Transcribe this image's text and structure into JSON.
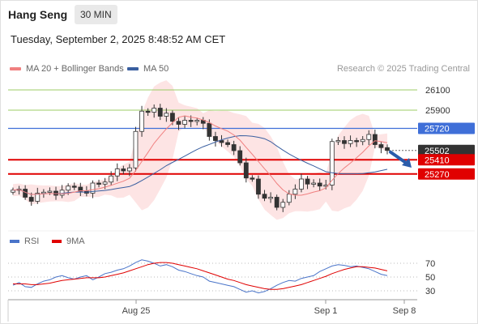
{
  "header": {
    "title": "Hang Seng",
    "timeframe": "30 MIN"
  },
  "timestamp": "Tuesday, September 2, 2025 8:48:52 AM CET",
  "legend": {
    "ma_bb": "MA 20 + Bollinger Bands",
    "ma50": "MA 50",
    "credit": "Research © 2025 Trading Central"
  },
  "colors": {
    "ma20": "#f08080",
    "ma50": "#3a5fa0",
    "band": "#fde1e1",
    "up": "#2e7d32",
    "down": "#c62828",
    "resistance_green": "#9ccc65",
    "pivot_blue": "#3f6fd8",
    "support_red": "#e00000",
    "price": "#333333"
  },
  "chart_data": [
    {
      "type": "candlestick",
      "title": "",
      "x_ticks": [
        "Aug 25",
        "Sep 1",
        "Sep 8"
      ],
      "levels": [
        {
          "value": 26100,
          "label": "26100",
          "style": "green-line"
        },
        {
          "value": 25900,
          "label": "25900",
          "style": "green-line"
        },
        {
          "value": 25720,
          "label": "25720",
          "style": "blue-pivot"
        },
        {
          "value": 25502,
          "label": "25502",
          "style": "last-price"
        },
        {
          "value": 25410,
          "label": "25410",
          "style": "red-support"
        },
        {
          "value": 25270,
          "label": "25270",
          "style": "red-support"
        }
      ],
      "close_series": [
        25110,
        25120,
        25040,
        25000,
        25080,
        25090,
        25100,
        25060,
        25110,
        25150,
        25140,
        25100,
        25080,
        25180,
        25170,
        25190,
        25250,
        25320,
        25300,
        25330,
        25690,
        25890,
        25880,
        25920,
        25840,
        25870,
        25790,
        25760,
        25800,
        25790,
        25800,
        25770,
        25640,
        25600,
        25580,
        25560,
        25500,
        25380,
        25230,
        25220,
        25070,
        25030,
        25040,
        24940,
        24990,
        25070,
        25120,
        25220,
        25170,
        25180,
        25150,
        25160,
        25590,
        25600,
        25570,
        25600,
        25590,
        25610,
        25660,
        25560,
        25530,
        25502
      ],
      "forecast": {
        "from": 25502,
        "to": 25300,
        "color": "#2a5caa"
      }
    },
    {
      "type": "line",
      "series": [
        {
          "name": "RSI"
        },
        {
          "name": "9MA"
        }
      ],
      "y_ticks": [
        70,
        50,
        30
      ],
      "ylim": [
        20,
        80
      ],
      "rsi": [
        38,
        42,
        36,
        35,
        40,
        44,
        46,
        50,
        52,
        49,
        47,
        50,
        52,
        46,
        50,
        55,
        57,
        60,
        62,
        66,
        71,
        75,
        73,
        70,
        66,
        68,
        65,
        60,
        58,
        55,
        52,
        50,
        44,
        42,
        40,
        38,
        36,
        32,
        28,
        30,
        27,
        29,
        33,
        38,
        42,
        45,
        44,
        48,
        50,
        52,
        58,
        62,
        66,
        68,
        67,
        65,
        66,
        64,
        62,
        58,
        54,
        52
      ],
      "ma9": [
        40,
        40,
        40,
        39,
        39,
        40,
        41,
        43,
        45,
        46,
        47,
        48,
        49,
        49,
        49,
        50,
        52,
        54,
        56,
        59,
        62,
        65,
        68,
        70,
        71,
        71,
        70,
        68,
        66,
        64,
        62,
        59,
        56,
        53,
        50,
        47,
        45,
        42,
        39,
        37,
        35,
        33,
        32,
        32,
        33,
        35,
        37,
        39,
        42,
        45,
        48,
        51,
        55,
        58,
        61,
        63,
        65,
        65,
        64,
        63,
        61,
        59
      ]
    }
  ],
  "rsi_legend": {
    "rsi": "RSI",
    "ma9": "9MA"
  }
}
